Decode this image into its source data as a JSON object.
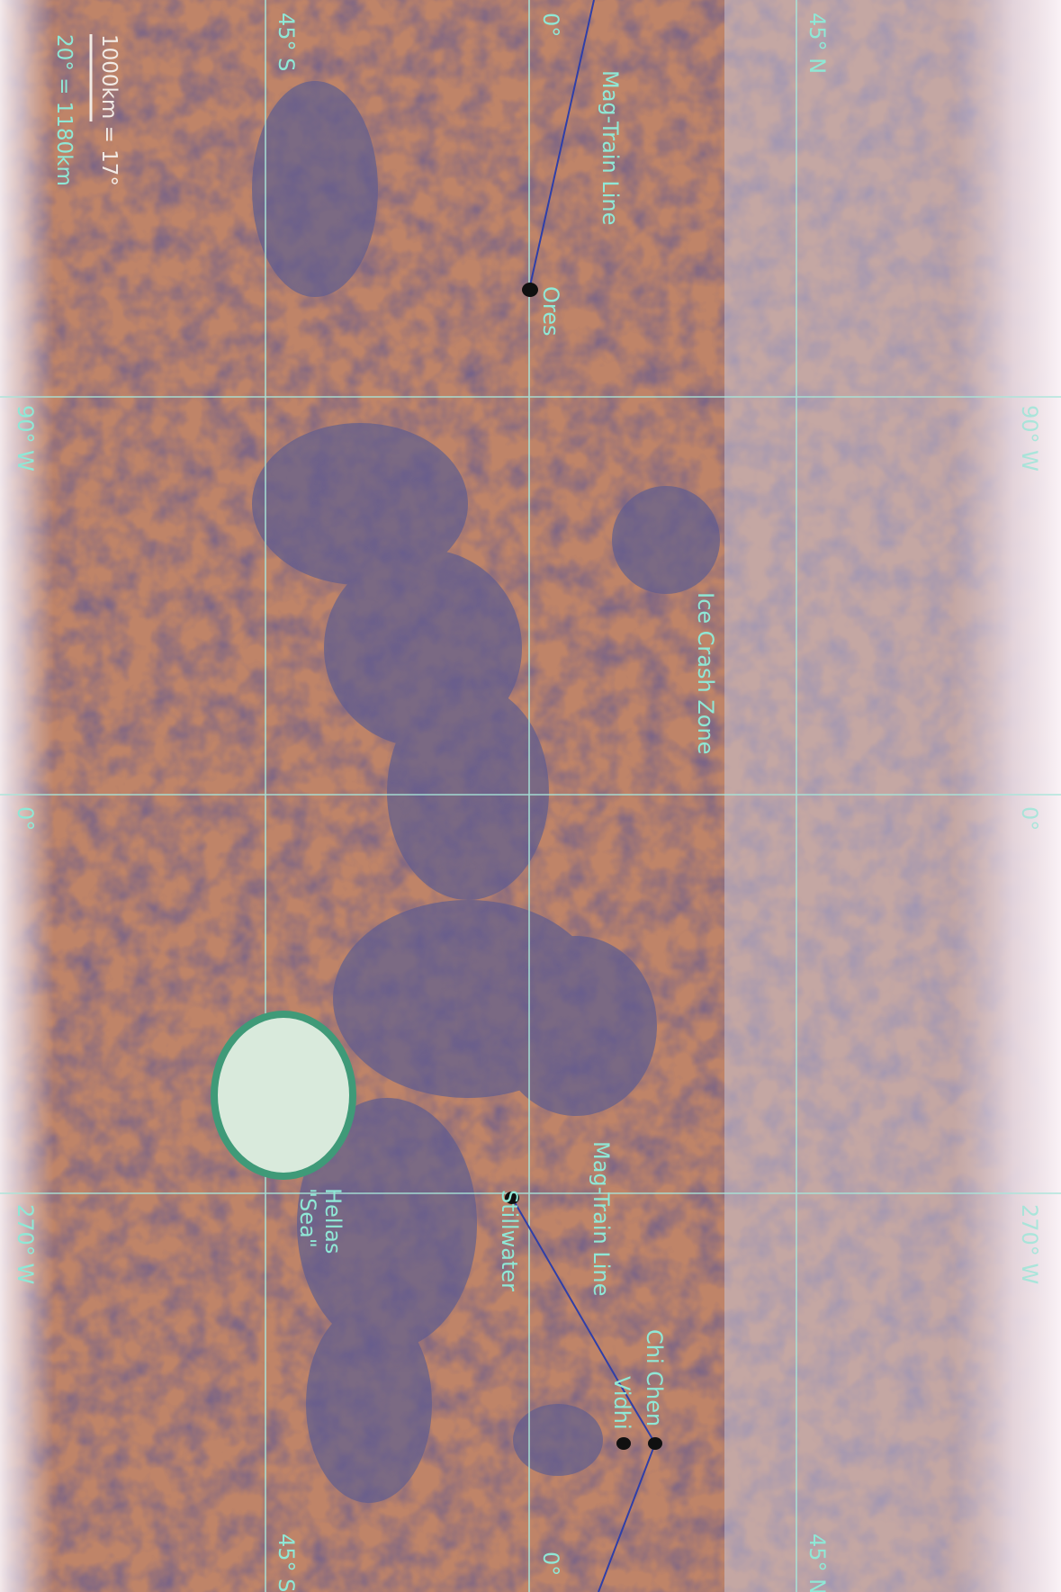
{
  "map": {
    "grid_labels": {
      "lat_45n": "45° N",
      "lat_0_top": "0°",
      "lat_0_bottom": "0°",
      "lat_45s_top": "45° S",
      "lat_45s_bottom": "45° S",
      "lon_90w_left": "90° W",
      "lon_90w_right": "90° W",
      "lon_0_left": "0°",
      "lon_0_right": "0°",
      "lon_270w_left": "270° W",
      "lon_270w_right": "270° W"
    },
    "scale": {
      "line1": "1000km = 17°",
      "line2": "20° = 1180km"
    },
    "places": {
      "ores": "Ores",
      "stillwater": "Stillwater",
      "chi_chen": "Chi Chen",
      "vidhi": "Vidhi",
      "hellas_1": "Hellas",
      "hellas_2": "\"Sea\""
    },
    "regions": {
      "ice_crash_zone": "Ice Crash Zone",
      "mag_train_line_1": "Mag-Train Line",
      "mag_train_line_2": "Mag-Train Line"
    },
    "colors": {
      "terrain": "#bf8468",
      "dark_terrain": "#5e5f8f",
      "polar_ice": "#f3e7ef",
      "grid": "#a8e6da",
      "label": "#8fe8d6",
      "rail": "#2f3fa8",
      "sea_fill": "#d9eadc",
      "sea_stroke": "#3f9a78"
    }
  }
}
